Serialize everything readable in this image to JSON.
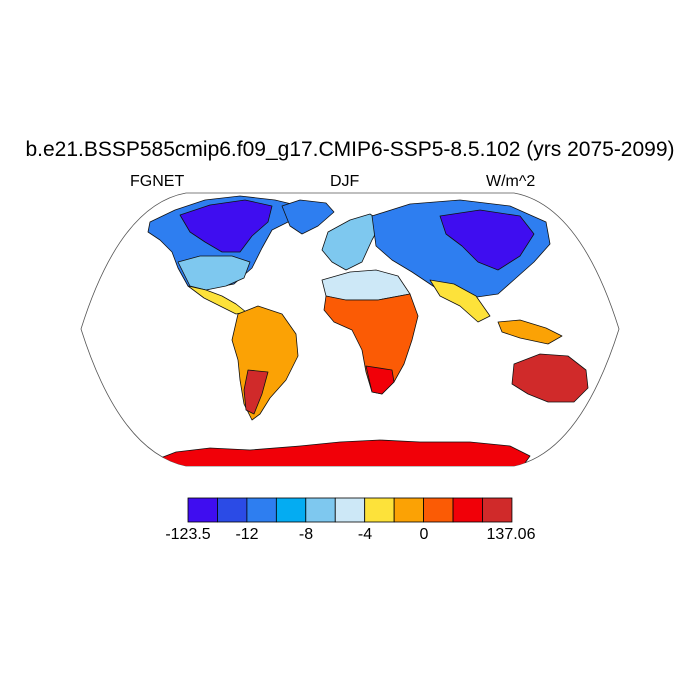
{
  "title": "b.e21.BSSP585cmip6.f09_g17.CMIP6-SSP5-8.5.102 (yrs 2075-2099)",
  "left_label": "FGNET",
  "center_label": "DJF",
  "right_label": "W/m^2",
  "colorbar": {
    "colors": [
      "#3f0df0",
      "#2b4be6",
      "#2e7ef0",
      "#04acf2",
      "#7ec8ef",
      "#cde8f7",
      "#fde23a",
      "#fba205",
      "#fb5b05",
      "#f10008",
      "#d02a2a"
    ],
    "tick_labels": [
      "-123.5",
      "-12",
      "-8",
      "-4",
      "0",
      "137.06"
    ]
  },
  "map": {
    "projection": "Robinson",
    "colors": {
      "ocean": "#ffffff",
      "coast": "#000000"
    }
  }
}
